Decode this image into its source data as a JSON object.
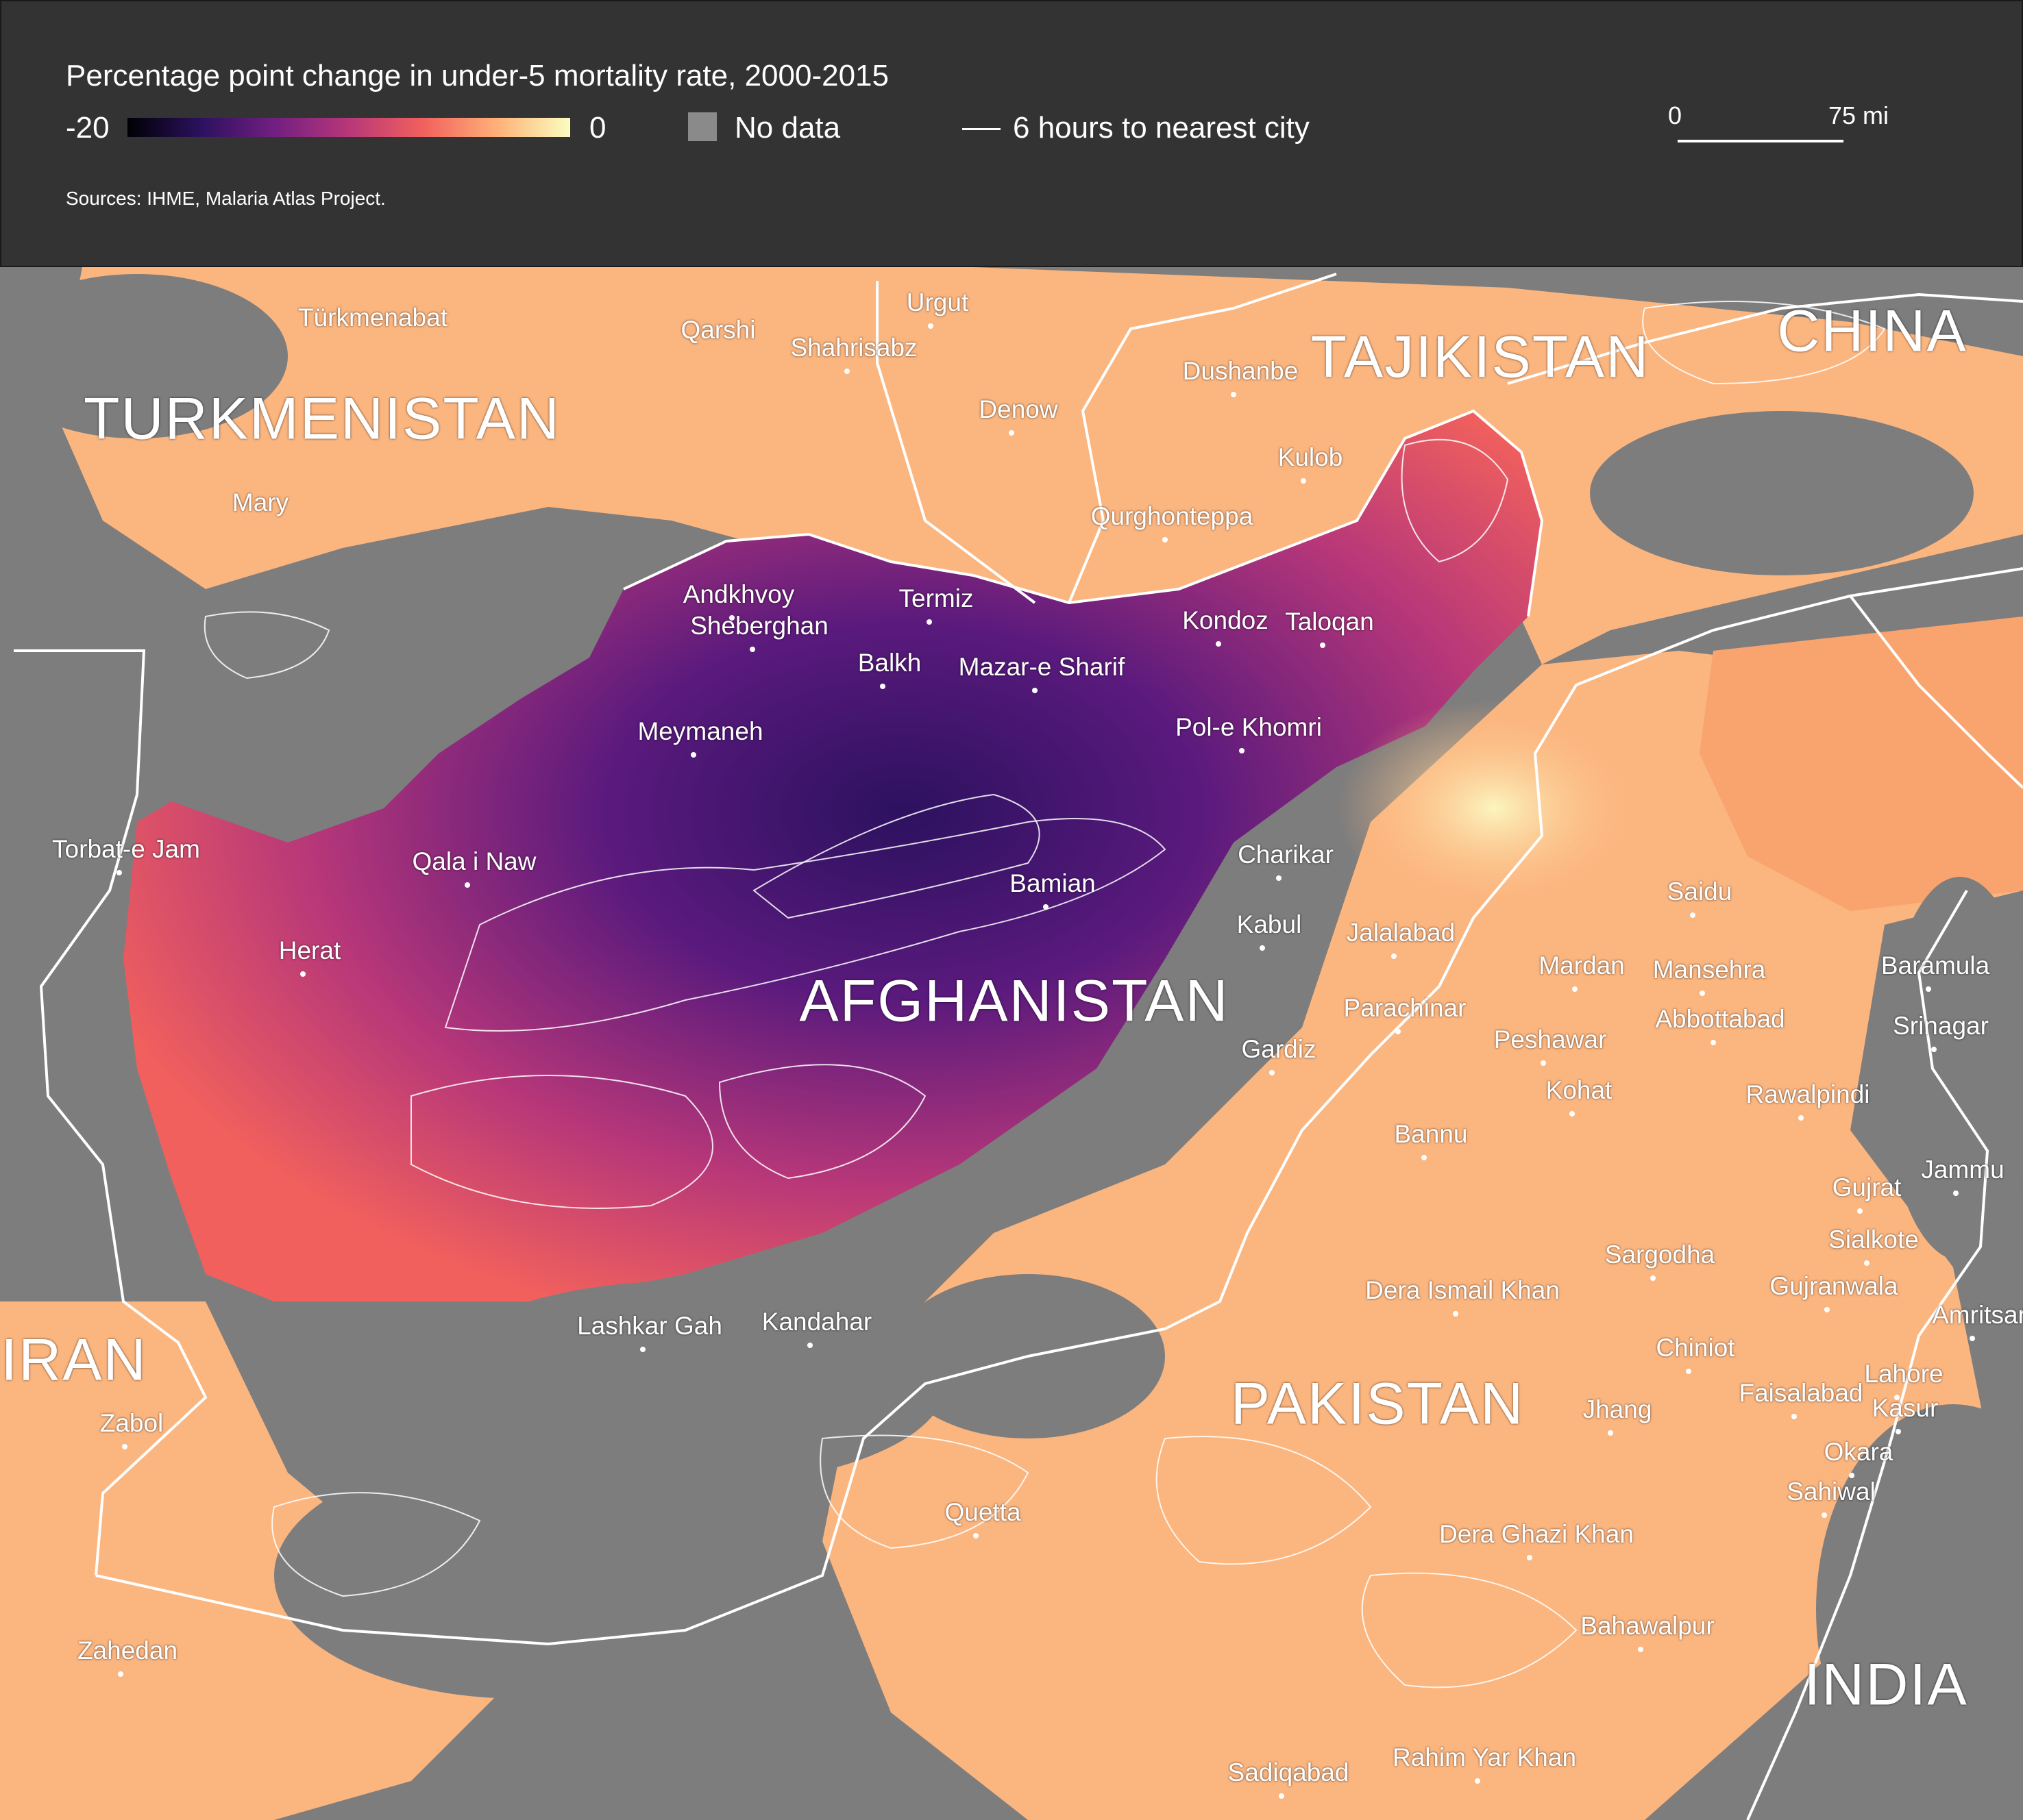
{
  "legend": {
    "title": "Percentage point change in under-5 mortality rate, 2000-2015",
    "min_label": "-20",
    "max_label": "0",
    "color_ramp": [
      "#000004",
      "#2c115f",
      "#721f81",
      "#b73779",
      "#f1605d",
      "#feb078",
      "#fcfdbf"
    ],
    "no_data_label": "No data",
    "no_data_color": "#8a8a8a",
    "travel_label": "6 hours to nearest city",
    "sources": "Sources: IHME, Malaria Atlas Project."
  },
  "scale_bar": {
    "zero": "0",
    "right": "75 mi"
  },
  "countries": [
    "TURKMENISTAN",
    "TAJIKISTAN",
    "CHINA",
    "AFGHANISTAN",
    "IRAN",
    "PAKISTAN",
    "INDIA"
  ],
  "cities": [
    "Türkmenabat",
    "Qarshi",
    "Urgut",
    "Shahrisabz",
    "Dushanbe",
    "Denow",
    "Mary",
    "Kulob",
    "Qurghonteppa",
    "Andkhvoy",
    "Termiz",
    "Sheberghan",
    "Balkh",
    "Mazar-e Sharif",
    "Kondoz",
    "Taloqan",
    "Meymaneh",
    "Pol-e Khomri",
    "Torbat-e Jam",
    "Qala i Naw",
    "Charikar",
    "Bamian",
    "Herat",
    "Kabul",
    "Jalalabad",
    "Saidu",
    "Mardan",
    "Mansehra",
    "Baramula",
    "AFGHANISTAN",
    "Parachinar",
    "Peshawar",
    "Abbottabad",
    "Srinagar",
    "Gardiz",
    "Kohat",
    "Rawalpindi",
    "Bannu",
    "Gujrat",
    "Jammu",
    "Sialkote",
    "Sargodha",
    "Dera Ismail Khan",
    "Gujranwala",
    "Lashkar Gah",
    "Kandahar",
    "Amritsar",
    "Chiniot",
    "Lahore",
    "Zabol",
    "Faisalabad",
    "Jhang",
    "Kasur",
    "Okara",
    "Sahiwal",
    "Quetta",
    "Dera Ghazi Khan",
    "Zahedan",
    "Bahawalpur",
    "Sadiqabad",
    "Rahim Yar Khan"
  ]
}
